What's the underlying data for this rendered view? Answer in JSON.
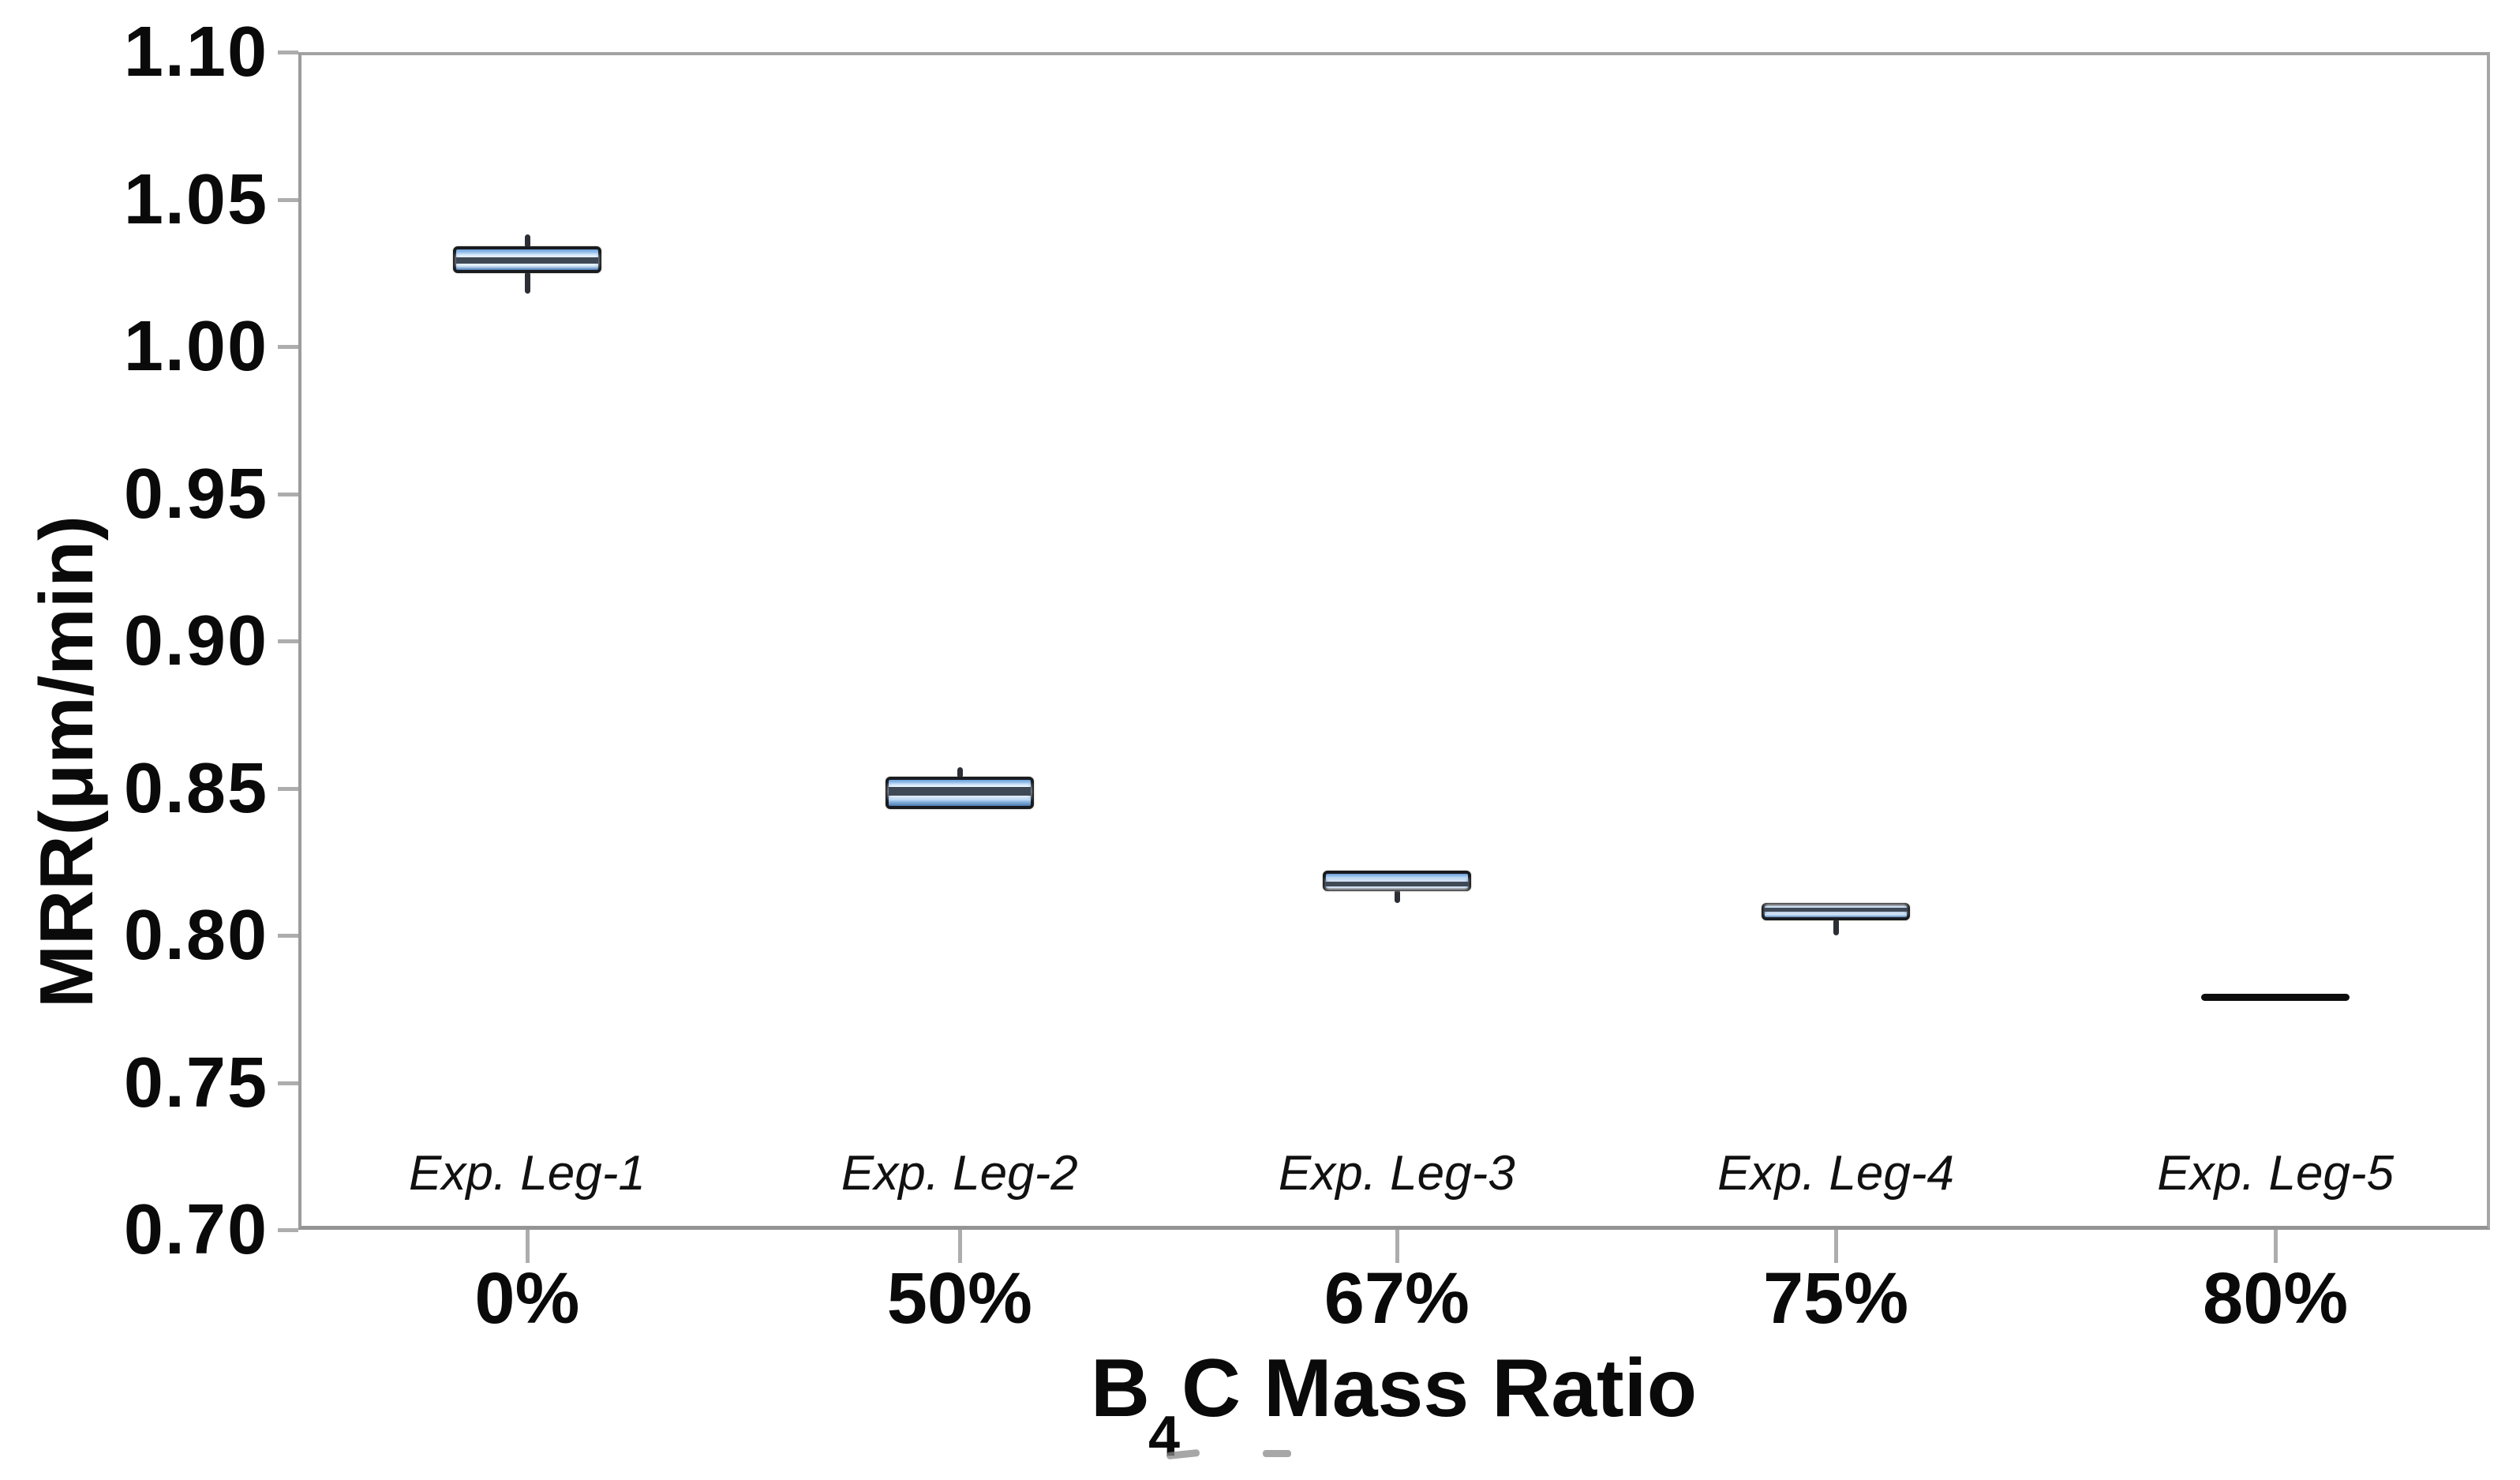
{
  "figure": {
    "background": "#ffffff",
    "frame_color": "#9c9c9c",
    "tick_color": "#adadad"
  },
  "chart_data": {
    "type": "box",
    "title": "",
    "xlabel": "B4C Mass Ratio",
    "xlabel_parts": {
      "main1": "B",
      "sub": "4",
      "main2": "C Mass Ratio"
    },
    "ylabel": "MRR(μm/min)",
    "ylim": [
      0.7,
      1.1
    ],
    "y_ticks": [
      "1.10",
      "1.05",
      "1.00",
      "0.95",
      "0.90",
      "0.85",
      "0.80",
      "0.75",
      "0.70"
    ],
    "grid": false,
    "legend": "none",
    "categories": [
      "0%",
      "50%",
      "67%",
      "75%",
      "80%"
    ],
    "series": [
      {
        "name": "Exp. Leg-1",
        "category": "0%",
        "whisker_low": 1.019,
        "q1": 1.025,
        "median": 1.029,
        "q3": 1.034,
        "whisker_high": 1.037
      },
      {
        "name": "Exp. Leg-2",
        "category": "50%",
        "whisker_low": 0.843,
        "q1": 0.843,
        "median": 0.849,
        "q3": 0.854,
        "whisker_high": 0.856
      },
      {
        "name": "Exp. Leg-3",
        "category": "67%",
        "whisker_low": 0.812,
        "q1": 0.815,
        "median": 0.817,
        "q3": 0.822,
        "whisker_high": 0.822
      },
      {
        "name": "Exp. Leg-4",
        "category": "75%",
        "whisker_low": 0.801,
        "q1": 0.805,
        "median": 0.809,
        "q3": 0.811,
        "whisker_high": 0.811
      },
      {
        "name": "Exp. Leg-5",
        "category": "80%",
        "whisker_low": 0.779,
        "q1": 0.779,
        "median": 0.779,
        "q3": 0.779,
        "whisker_high": 0.779
      }
    ],
    "box_fill_color": "#6796cf",
    "box_border_color": "#181b20",
    "median_band_color": "#3f4956",
    "whisker_color": "#2c2f35",
    "degenerate_line_color": "#0d0d0d"
  }
}
